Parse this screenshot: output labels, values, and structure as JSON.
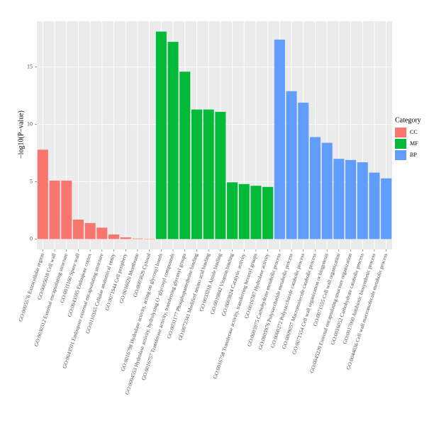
{
  "chart_data": {
    "type": "bar",
    "y_label": "−log10(P−value)",
    "legend_title": "Category",
    "categories": [
      "GO:0005576 Extracellular region",
      "GO:0005618 Cell wall",
      "GO:0030312 External encapsulating structure",
      "GO:0031160 Spore wall",
      "GO:0043595 Endospore cortex",
      "GO:0043591 Endospore external encapsulating structure",
      "GO:0110165 Cellular anatomical entity",
      "GO:0071944 Cell periphery",
      "GO:0016020 Membrane",
      "GO:0005829 Cytosol",
      "GO:0016798 Hydrolase activity, acting on glycosyl bonds",
      "GO:0004553 Hydrolase activity, hydrolyzing O−glycosyl compounds",
      "GO:0016757 Transferase activity, transferring glycosyl groups",
      "GO:0031177 Phosphopantetheine binding",
      "GO:0072341 Modified amino acid binding",
      "GO:0033218 Amide binding",
      "GO:0019842 Vitamin binding",
      "GO:0003824 Catalytic activity",
      "GO:0016758 Transferase activity, transferring hexosyl groups",
      "GO:0016787 Hydrolase activity",
      "GO:0005975 Carbohydrate metabolic process",
      "GO:0005976 Polysaccharide metabolic process",
      "GO:0000272 Polysaccharide catabolic process",
      "GO:0009057 Macromolecule catabolic process",
      "GO:0071554 Cell wall organization or biogenesis",
      "GO:0071555 Cell wall organization",
      "GO:0045229 External encapsulating structure organization",
      "GO:0016052 Carbohydrate catabolic process",
      "GO:0017000 Antibiotic biosynthetic process",
      "GO:0044036 Cell wall macromolecule metabolic process"
    ],
    "series": [
      {
        "name": "CC",
        "color": "#F8766D",
        "values": [
          7.8,
          5.1,
          5.1,
          1.7,
          1.4,
          1.0,
          0.4,
          0.15,
          0.05,
          0.03,
          null,
          null,
          null,
          null,
          null,
          null,
          null,
          null,
          null,
          null,
          null,
          null,
          null,
          null,
          null,
          null,
          null,
          null,
          null,
          null
        ]
      },
      {
        "name": "MF",
        "color": "#00BA38",
        "values": [
          null,
          null,
          null,
          null,
          null,
          null,
          null,
          null,
          null,
          null,
          18.1,
          17.2,
          14.6,
          11.3,
          11.3,
          11.1,
          4.95,
          4.8,
          4.65,
          4.55,
          null,
          null,
          null,
          null,
          null,
          null,
          null,
          null,
          null,
          null
        ]
      },
      {
        "name": "BP",
        "color": "#619CFF",
        "values": [
          null,
          null,
          null,
          null,
          null,
          null,
          null,
          null,
          null,
          null,
          null,
          null,
          null,
          null,
          null,
          null,
          null,
          null,
          null,
          null,
          17.4,
          12.9,
          11.9,
          8.9,
          8.4,
          7.0,
          6.9,
          6.7,
          5.8,
          5.3
        ]
      }
    ],
    "ylim": [
      -0.9,
      19.0
    ],
    "yticks": [
      0,
      5,
      10,
      15
    ],
    "grid": true
  }
}
